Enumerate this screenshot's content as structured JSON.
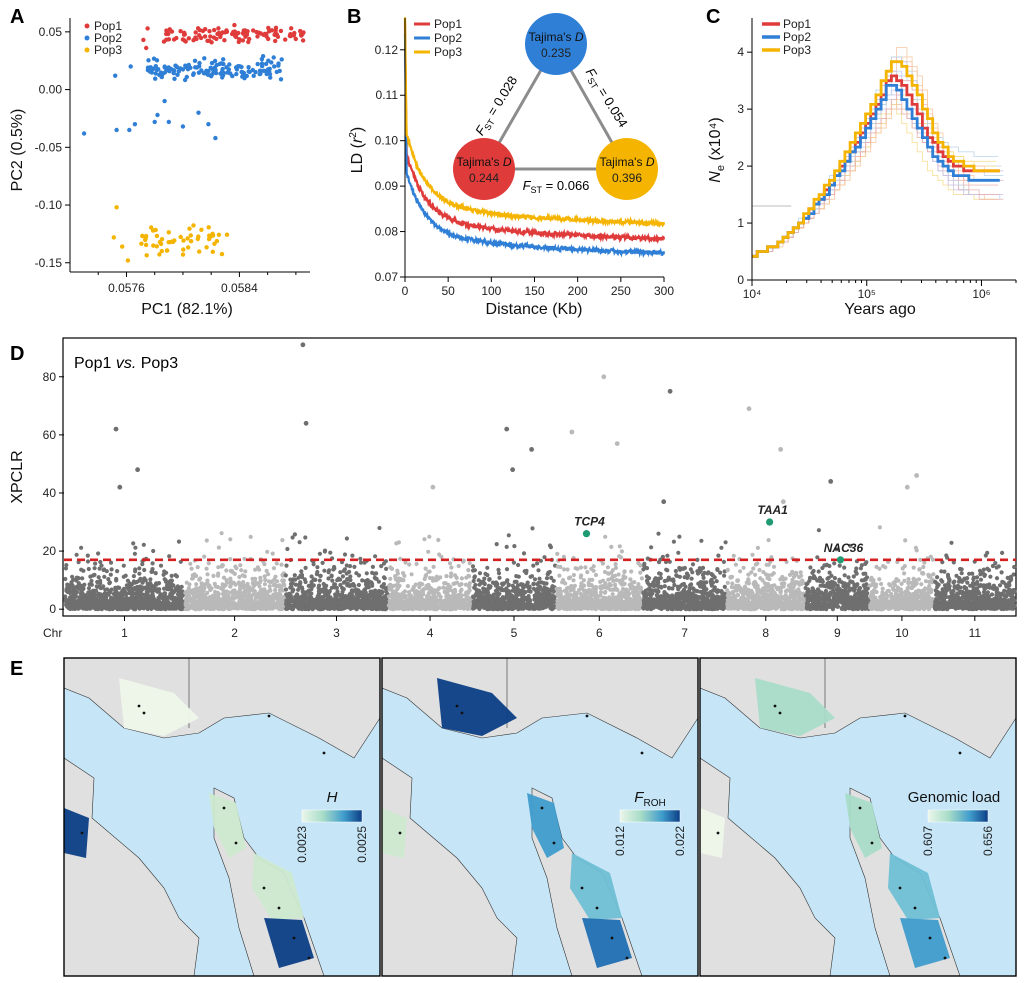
{
  "colors": {
    "pop1": "#e03b3b",
    "pop2": "#2f7fd6",
    "pop3": "#f5b400",
    "dark_point": "#6f6f6f",
    "light_point": "#b9b9b9",
    "threshold": "#d42020",
    "highlight": "#1f9a73",
    "sea": "#c6e6f8",
    "land": "#e0e0e0"
  },
  "panel_letters": {
    "a": "A",
    "b": "B",
    "c": "C",
    "d": "D",
    "e": "E"
  },
  "chart_data": [
    {
      "id": "A",
      "type": "scatter",
      "xlabel": "PC1 (82.1%)",
      "ylabel": "PC2 (0.5%)",
      "xlim": [
        0.0572,
        0.0589
      ],
      "ylim": [
        -0.158,
        0.062
      ],
      "xticks": [
        0.0576,
        0.0584
      ],
      "xtick_labels": [
        "0.0576",
        "0.0584"
      ],
      "yticks": [
        0.05,
        0.0,
        -0.05,
        -0.1,
        -0.15
      ],
      "ytick_labels": [
        "0.05",
        "0.00",
        "-0.05",
        "-0.10",
        "-0.15"
      ],
      "legend": [
        "Pop1",
        "Pop2",
        "Pop3"
      ],
      "series": [
        {
          "name": "Pop1",
          "cluster": {
            "x_range": [
              0.05786,
              0.05886
            ],
            "y_range": [
              0.037,
              0.057
            ],
            "n": 110
          },
          "extra_points": [
            [
              0.05775,
              0.053
            ],
            [
              0.05772,
              0.043
            ],
            [
              0.05774,
              0.036
            ]
          ]
        },
        {
          "name": "Pop2",
          "cluster": {
            "x_range": [
              0.05775,
              0.0587
            ],
            "y_range": [
              0.005,
              0.031
            ],
            "n": 140
          },
          "extra_points": [
            [
              0.0573,
              -0.038
            ],
            [
              0.05752,
              0.012
            ],
            [
              0.05753,
              -0.035
            ],
            [
              0.05762,
              -0.035
            ],
            [
              0.05766,
              -0.03
            ],
            [
              0.0578,
              -0.028
            ],
            [
              0.05782,
              -0.022
            ],
            [
              0.0579,
              -0.028
            ],
            [
              0.058,
              -0.032
            ],
            [
              0.05811,
              -0.02
            ],
            [
              0.05818,
              -0.03
            ],
            [
              0.05823,
              -0.042
            ],
            [
              0.05763,
              0.02
            ],
            [
              0.05787,
              -0.01
            ]
          ]
        },
        {
          "name": "Pop3",
          "cluster": {
            "x_range": [
              0.05769,
              0.05833
            ],
            "y_range": [
              -0.148,
              -0.112
            ],
            "n": 55
          },
          "extra_points": [
            [
              0.05753,
              -0.102
            ],
            [
              0.05757,
              -0.136
            ],
            [
              0.05761,
              -0.148
            ],
            [
              0.05751,
              -0.128
            ]
          ]
        }
      ]
    },
    {
      "id": "B",
      "type": "line",
      "xlabel": "Distance (Kb)",
      "ylabel": "LD (r²)",
      "xlim": [
        0,
        300
      ],
      "ylim": [
        0.07,
        0.127
      ],
      "xticks": [
        0,
        50,
        100,
        150,
        200,
        250,
        300
      ],
      "yticks": [
        0.07,
        0.08,
        0.09,
        0.1,
        0.11,
        0.12
      ],
      "ytick_labels": [
        "0.07",
        "0.08",
        "0.09",
        "0.10",
        "0.11",
        "0.12"
      ],
      "legend": [
        "Pop1",
        "Pop2",
        "Pop3"
      ],
      "series": [
        {
          "name": "Pop1",
          "start": 0.126,
          "asymptote": 0.0793,
          "drop": 0.0142
        },
        {
          "name": "Pop2",
          "start": 0.124,
          "asymptote": 0.0762,
          "drop": 0.0132
        },
        {
          "name": "Pop3",
          "start": 0.127,
          "asymptote": 0.0827,
          "drop": 0.0152
        }
      ],
      "network": {
        "nodes": [
          {
            "name": "Pop2",
            "label": "Tajima's",
            "italic": "D",
            "value": "0.235"
          },
          {
            "name": "Pop1",
            "label": "Tajima's",
            "italic": "D",
            "value": "0.244"
          },
          {
            "name": "Pop3",
            "label": "Tajima's",
            "italic": "D",
            "value": "0.396"
          }
        ],
        "edges": [
          {
            "from": "Pop2",
            "to": "Pop1",
            "label": "= 0.028"
          },
          {
            "from": "Pop2",
            "to": "Pop3",
            "label": "= 0.054"
          },
          {
            "from": "Pop1",
            "to": "Pop3",
            "label": "= 0.066"
          }
        ],
        "fst_symbol": "F",
        "fst_sub": "ST"
      }
    },
    {
      "id": "C",
      "type": "line",
      "xlabel": "Years ago",
      "ylabel_main": "N",
      "ylabel_sub": "e",
      "ylabel_rest": "(x10⁴)",
      "xscale": "log",
      "xlim": [
        10000,
        2000000
      ],
      "ylim": [
        0,
        4.6
      ],
      "xticks": [
        10000,
        100000,
        1000000
      ],
      "xtick_labels": [
        "10⁴",
        "10⁵",
        "10⁶"
      ],
      "yticks": [
        0,
        1,
        2,
        3,
        4
      ],
      "ytick_labels": [
        "0",
        "1",
        "2",
        "3",
        "4"
      ],
      "legend": [
        "Pop1",
        "Pop2",
        "Pop3"
      ],
      "series": [
        {
          "name": "Pop1",
          "peak": 3.55,
          "end": 1.88
        },
        {
          "name": "Pop2",
          "peak": 3.4,
          "end": 1.75
        },
        {
          "name": "Pop3",
          "peak": 3.88,
          "end": 1.92
        }
      ]
    },
    {
      "id": "D",
      "type": "scatter",
      "title_left": "Pop1",
      "title_italic": "vs.",
      "title_right": "Pop3",
      "ylabel": "XPCLR",
      "xlabel_prefix": "Chr",
      "ylim": [
        -2,
        93
      ],
      "yticks": [
        0,
        20,
        40,
        60,
        80
      ],
      "ytick_labels": [
        "0",
        "20",
        "40",
        "60",
        "80"
      ],
      "threshold": 17,
      "chromosomes": [
        "1",
        "2",
        "3",
        "4",
        "5",
        "6",
        "7",
        "8",
        "9",
        "10",
        "11"
      ],
      "chromosome_lengths": [
        43,
        36,
        37,
        30,
        30,
        31,
        30,
        28,
        23,
        23,
        29
      ],
      "outliers": [
        [
          1,
          62
        ],
        [
          1,
          42
        ],
        [
          1,
          48
        ],
        [
          3,
          91
        ],
        [
          3,
          64
        ],
        [
          4,
          42
        ],
        [
          5,
          62
        ],
        [
          5,
          55
        ],
        [
          5,
          48
        ],
        [
          6,
          80
        ],
        [
          6,
          61
        ],
        [
          6,
          57
        ],
        [
          7,
          75
        ],
        [
          7,
          37
        ],
        [
          8,
          69
        ],
        [
          8,
          55
        ],
        [
          8,
          37
        ],
        [
          9,
          44
        ],
        [
          10,
          46
        ],
        [
          10,
          42
        ]
      ],
      "genes": [
        {
          "label": "TCP4",
          "chr": 6,
          "value": 26
        },
        {
          "label": "TAA1",
          "chr": 8,
          "value": 30
        },
        {
          "label": "NAC36",
          "chr": 9,
          "value": 17
        }
      ]
    },
    {
      "id": "E",
      "type": "heatmap",
      "maps": [
        {
          "title": "H",
          "title_sub": "",
          "min_label": "0.0023",
          "max_label": "0.0025",
          "min": 0.0023,
          "max": 0.0025
        },
        {
          "title": "F",
          "title_sub": "ROH",
          "min_label": "0.012",
          "max_label": "0.022",
          "min": 0.012,
          "max": 0.022
        },
        {
          "title": "Genomic load",
          "title_sub": "",
          "min_label": "0.607",
          "max_label": "0.656",
          "min": 0.607,
          "max": 0.656
        }
      ]
    }
  ]
}
